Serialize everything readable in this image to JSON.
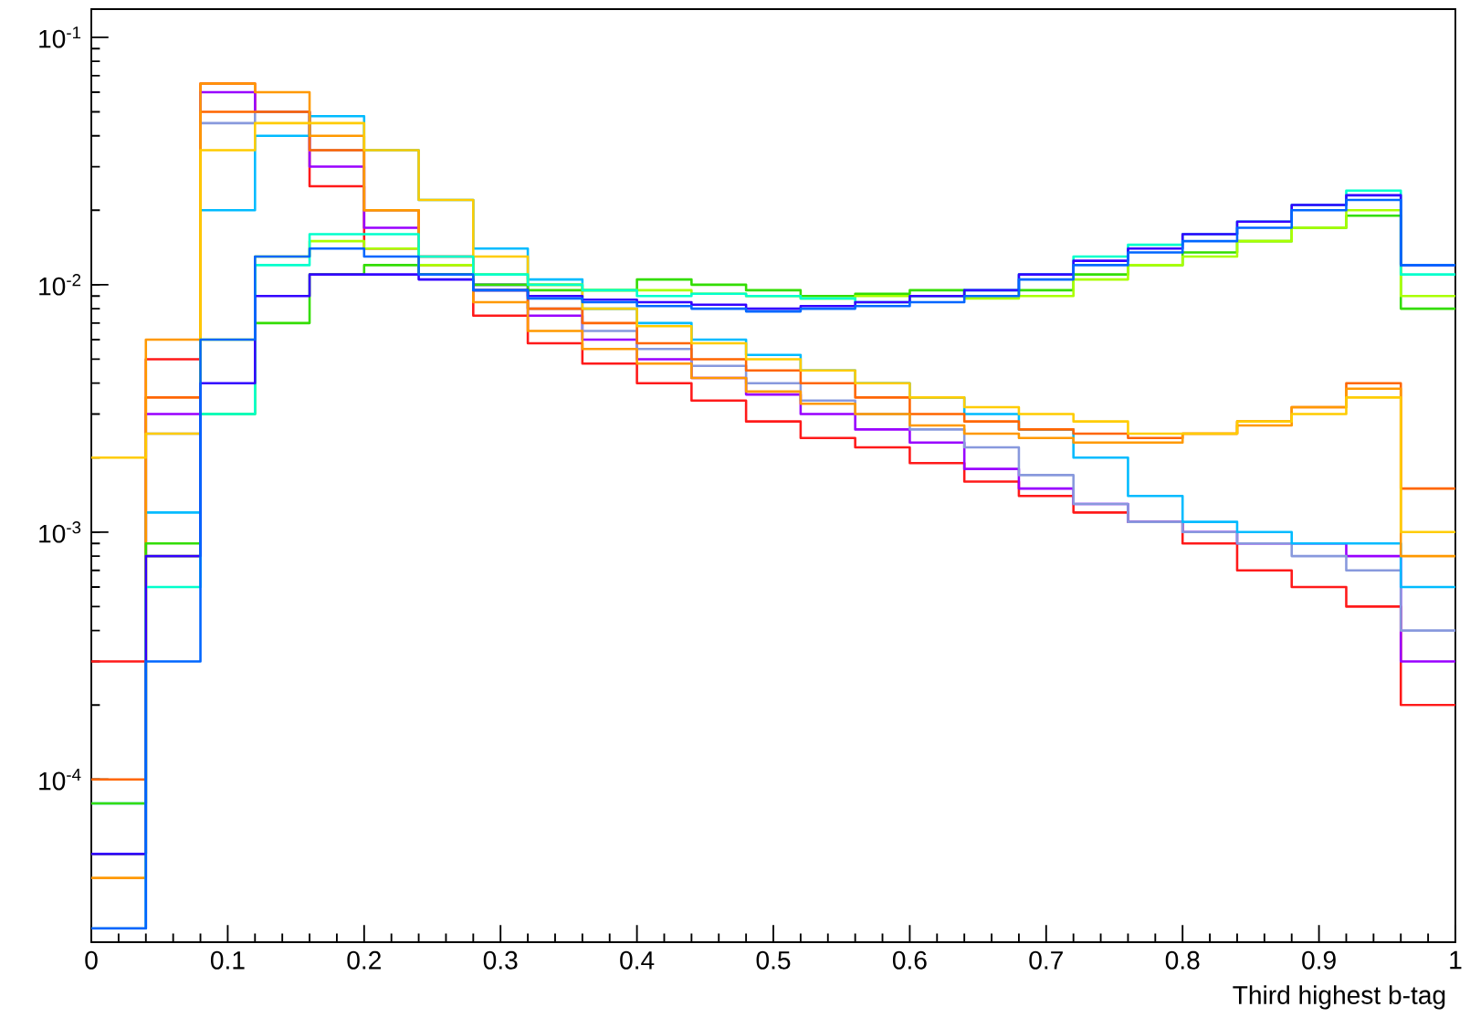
{
  "chart_data": {
    "type": "histogram",
    "xlabel": "Third highest b-tag",
    "bins": [
      0,
      0.04,
      0.08,
      0.12,
      0.16,
      0.2,
      0.24,
      0.28,
      0.32,
      0.36,
      0.4,
      0.44,
      0.48,
      0.52,
      0.56,
      0.6,
      0.64,
      0.68,
      0.72,
      0.76,
      0.8,
      0.84,
      0.88,
      0.92,
      0.96,
      1
    ],
    "xlim": [
      0,
      1
    ],
    "xticks": [
      0,
      0.1,
      0.2,
      0.3,
      0.4,
      0.5,
      0.6,
      0.7,
      0.8,
      0.9,
      1
    ],
    "ylim": [
      2.2e-05,
      0.13
    ],
    "log": "y",
    "yticks": [
      {
        "value": 0.0001,
        "label": "10$^{-4}$"
      },
      {
        "value": 0.001,
        "label": "10$^{-3}$"
      },
      {
        "value": 0.01,
        "label": "10$^{-2}$"
      },
      {
        "value": 0.1,
        "label": "10$^{-1}$"
      }
    ],
    "grid": false,
    "series": [
      {
        "color": "#ff1a1a",
        "values": [
          0.0003,
          0.005,
          0.065,
          0.05,
          0.025,
          0.014,
          0.011,
          0.0075,
          0.0058,
          0.0048,
          0.004,
          0.0034,
          0.0028,
          0.0024,
          0.0022,
          0.0019,
          0.0016,
          0.0014,
          0.0012,
          0.0011,
          0.0009,
          0.0007,
          0.0006,
          0.0005,
          0.0002
        ]
      },
      {
        "color": "#9900ff",
        "values": [
          2.5e-05,
          0.003,
          0.06,
          0.05,
          0.03,
          0.017,
          0.012,
          0.01,
          0.0075,
          0.006,
          0.005,
          0.0042,
          0.0036,
          0.003,
          0.0026,
          0.0023,
          0.0018,
          0.0015,
          0.0013,
          0.0011,
          0.001,
          0.0009,
          0.0009,
          0.0008,
          0.0003
        ]
      },
      {
        "color": "#8899dd",
        "values": [
          5e-05,
          0.0025,
          0.045,
          0.05,
          0.035,
          0.02,
          0.013,
          0.01,
          0.008,
          0.0065,
          0.0055,
          0.0047,
          0.004,
          0.0034,
          0.003,
          0.0026,
          0.0022,
          0.0017,
          0.0013,
          0.0011,
          0.001,
          0.0009,
          0.0008,
          0.0007,
          0.0004
        ]
      },
      {
        "color": "#00bbff",
        "values": [
          8e-05,
          0.0012,
          0.02,
          0.04,
          0.048,
          0.035,
          0.022,
          0.014,
          0.0105,
          0.008,
          0.007,
          0.006,
          0.0052,
          0.0045,
          0.004,
          0.0035,
          0.003,
          0.0026,
          0.002,
          0.0014,
          0.0011,
          0.001,
          0.0009,
          0.0009,
          0.0006
        ]
      },
      {
        "color": "#ff6600",
        "values": [
          0.0001,
          0.0035,
          0.05,
          0.05,
          0.035,
          0.02,
          0.013,
          0.0095,
          0.008,
          0.007,
          0.0058,
          0.005,
          0.0045,
          0.004,
          0.0035,
          0.003,
          0.0028,
          0.0026,
          0.0025,
          0.0024,
          0.0025,
          0.0028,
          0.0032,
          0.004,
          0.0015
        ]
      },
      {
        "color": "#ff9900",
        "values": [
          4e-05,
          0.006,
          0.065,
          0.06,
          0.04,
          0.02,
          0.012,
          0.0085,
          0.0065,
          0.0055,
          0.0048,
          0.0042,
          0.0037,
          0.0033,
          0.003,
          0.0027,
          0.0025,
          0.0024,
          0.0023,
          0.0023,
          0.0025,
          0.0027,
          0.0032,
          0.0038,
          0.0008
        ]
      },
      {
        "color": "#ffcc00",
        "values": [
          0.002,
          0.0025,
          0.035,
          0.045,
          0.045,
          0.035,
          0.022,
          0.013,
          0.01,
          0.008,
          0.0068,
          0.0058,
          0.005,
          0.0045,
          0.004,
          0.0035,
          0.0032,
          0.003,
          0.0028,
          0.0025,
          0.0025,
          0.0028,
          0.003,
          0.0035,
          0.001
        ]
      },
      {
        "color": "#33dd00",
        "values": [
          8e-05,
          0.0009,
          0.003,
          0.007,
          0.011,
          0.012,
          0.011,
          0.01,
          0.0095,
          0.0095,
          0.0105,
          0.01,
          0.0095,
          0.009,
          0.0092,
          0.0095,
          0.009,
          0.0095,
          0.011,
          0.012,
          0.0135,
          0.015,
          0.017,
          0.019,
          0.008
        ]
      },
      {
        "color": "#aaff00",
        "values": [
          5e-05,
          0.0008,
          0.006,
          0.013,
          0.015,
          0.014,
          0.012,
          0.011,
          0.01,
          0.0095,
          0.0095,
          0.0092,
          0.009,
          0.0088,
          0.009,
          0.009,
          0.0088,
          0.009,
          0.0105,
          0.012,
          0.013,
          0.015,
          0.017,
          0.02,
          0.009
        ]
      },
      {
        "color": "#00ffcc",
        "values": [
          2.5e-05,
          0.0006,
          0.003,
          0.012,
          0.016,
          0.016,
          0.013,
          0.011,
          0.01,
          0.0095,
          0.009,
          0.0092,
          0.009,
          0.0088,
          0.0085,
          0.009,
          0.0095,
          0.011,
          0.013,
          0.0145,
          0.016,
          0.018,
          0.021,
          0.024,
          0.011
        ]
      },
      {
        "color": "#3300ff",
        "values": [
          5e-05,
          0.0008,
          0.004,
          0.009,
          0.011,
          0.011,
          0.0105,
          0.0095,
          0.009,
          0.0087,
          0.0085,
          0.0083,
          0.008,
          0.0082,
          0.0085,
          0.009,
          0.0095,
          0.011,
          0.0125,
          0.014,
          0.016,
          0.018,
          0.021,
          0.023,
          0.012
        ]
      },
      {
        "color": "#0066ff",
        "values": [
          2.5e-05,
          0.0003,
          0.006,
          0.013,
          0.014,
          0.013,
          0.011,
          0.0095,
          0.0088,
          0.0085,
          0.0082,
          0.008,
          0.0078,
          0.008,
          0.0082,
          0.0085,
          0.009,
          0.0105,
          0.012,
          0.0135,
          0.015,
          0.017,
          0.02,
          0.022,
          0.012
        ]
      }
    ]
  }
}
